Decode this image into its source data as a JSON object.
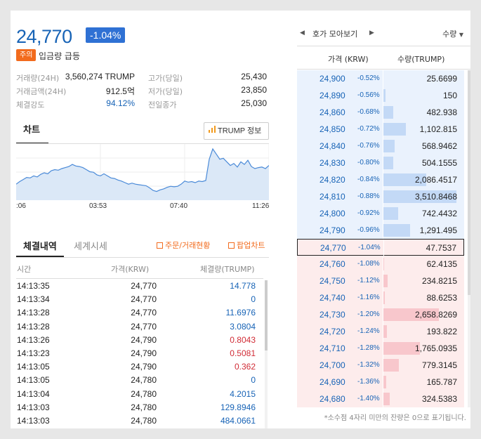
{
  "summary": {
    "price": "24,770",
    "change_rate": "-1.04%",
    "warning_badge": "주의",
    "warning_text": "입금량 급등"
  },
  "stats": {
    "volume_label": "거래량(24H)",
    "volume_value": "3,560,274 TRUMP",
    "amount_label": "거래금액(24H)",
    "amount_value": "912.5억",
    "strength_label": "체결강도",
    "strength_value": "94.12%",
    "high_label": "고가(당일)",
    "high_value": "25,430",
    "low_label": "저가(당일)",
    "low_value": "23,850",
    "prev_label": "전일종가",
    "prev_value": "25,030"
  },
  "chart": {
    "tab_label": "차트",
    "info_button": "TRUMP 정보",
    "x_ticks": [
      ":06",
      "03:53",
      "07:40",
      "11:26"
    ]
  },
  "chart_data": {
    "type": "area",
    "title": "",
    "xlabel": "",
    "ylabel": "",
    "x": [
      0,
      1,
      2,
      3,
      4,
      5,
      6,
      7,
      8,
      9,
      10,
      11,
      12,
      13,
      14,
      15,
      16,
      17,
      18,
      19,
      20,
      21,
      22,
      23,
      24,
      25,
      26,
      27,
      28,
      29,
      30,
      31,
      32,
      33,
      34,
      35,
      36,
      37,
      38,
      39,
      40,
      41,
      42,
      43,
      44,
      45,
      46,
      47,
      48,
      49,
      50,
      51,
      52,
      53,
      54,
      55,
      56,
      57,
      58,
      59,
      60,
      61,
      62,
      63,
      64,
      65,
      66,
      67,
      68,
      69,
      70,
      71,
      72
    ],
    "values": [
      24420,
      24470,
      24510,
      24550,
      24540,
      24580,
      24560,
      24610,
      24640,
      24620,
      24680,
      24700,
      24690,
      24720,
      24740,
      24760,
      24800,
      24770,
      24760,
      24740,
      24700,
      24660,
      24650,
      24600,
      24580,
      24620,
      24580,
      24540,
      24530,
      24500,
      24480,
      24450,
      24420,
      24440,
      24420,
      24410,
      24400,
      24390,
      24350,
      24300,
      24280,
      24310,
      24330,
      24360,
      24380,
      24370,
      24380,
      24420,
      24480,
      24460,
      24470,
      24450,
      24480,
      24470,
      24490,
      24900,
      25100,
      25000,
      24900,
      24920,
      24850,
      24780,
      24820,
      24750,
      24850,
      24800,
      24880,
      24760,
      24720,
      24740,
      24750,
      24720,
      24780
    ],
    "grid": true,
    "fill_color": "#dbe8f7",
    "line_color": "#4a8ad8"
  },
  "trades": {
    "tab_active": "체결내역",
    "tab_inactive": "세계시세",
    "link_order": "주문/거래현황",
    "link_popup": "팝업차트",
    "col_time": "시간",
    "col_price": "가격(KRW)",
    "col_volume": "체결량(TRUMP)",
    "rows": [
      {
        "time": "14:13:35",
        "price": "24,770",
        "volume": "14.778",
        "side": "up"
      },
      {
        "time": "14:13:34",
        "price": "24,770",
        "volume": "0",
        "side": "up"
      },
      {
        "time": "14:13:28",
        "price": "24,770",
        "volume": "11.6976",
        "side": "up"
      },
      {
        "time": "14:13:28",
        "price": "24,770",
        "volume": "3.0804",
        "side": "up"
      },
      {
        "time": "14:13:26",
        "price": "24,790",
        "volume": "0.8043",
        "side": "down"
      },
      {
        "time": "14:13:23",
        "price": "24,790",
        "volume": "0.5081",
        "side": "down"
      },
      {
        "time": "14:13:05",
        "price": "24,790",
        "volume": "0.362",
        "side": "down"
      },
      {
        "time": "14:13:05",
        "price": "24,780",
        "volume": "0",
        "side": "up"
      },
      {
        "time": "14:13:04",
        "price": "24,780",
        "volume": "4.2015",
        "side": "up"
      },
      {
        "time": "14:13:03",
        "price": "24,780",
        "volume": "129.8946",
        "side": "up"
      },
      {
        "time": "14:13:03",
        "price": "24,780",
        "volume": "484.0661",
        "side": "up"
      }
    ]
  },
  "orderbook": {
    "nav_label": "호가 모아보기",
    "qty_select": "수량",
    "col_price": "가격 (KRW)",
    "col_qty": "수량(TRUMP)",
    "footnote": "*소수점 4자리 미만의 잔량은 0으로 표기됩니다.",
    "current_price": "24,770",
    "asks": [
      {
        "price": "24,900",
        "pct": "-0.52%",
        "qty": "25.6699",
        "fill": 0.007
      },
      {
        "price": "24,890",
        "pct": "-0.56%",
        "qty": "150",
        "fill": 0.04
      },
      {
        "price": "24,860",
        "pct": "-0.68%",
        "qty": "482.938",
        "fill": 0.14
      },
      {
        "price": "24,850",
        "pct": "-0.72%",
        "qty": "1,102.815",
        "fill": 0.31
      },
      {
        "price": "24,840",
        "pct": "-0.76%",
        "qty": "568.9462",
        "fill": 0.16
      },
      {
        "price": "24,830",
        "pct": "-0.80%",
        "qty": "504.1555",
        "fill": 0.14
      },
      {
        "price": "24,820",
        "pct": "-0.84%",
        "qty": "2,086.4517",
        "fill": 0.59
      },
      {
        "price": "24,810",
        "pct": "-0.88%",
        "qty": "3,510.8468",
        "fill": 1.0
      },
      {
        "price": "24,800",
        "pct": "-0.92%",
        "qty": "742.4432",
        "fill": 0.21
      },
      {
        "price": "24,790",
        "pct": "-0.96%",
        "qty": "1,291.495",
        "fill": 0.37
      }
    ],
    "bids": [
      {
        "price": "24,770",
        "pct": "-1.04%",
        "qty": "47.7537",
        "fill": 0.014
      },
      {
        "price": "24,760",
        "pct": "-1.08%",
        "qty": "62.4135",
        "fill": 0.02
      },
      {
        "price": "24,750",
        "pct": "-1.12%",
        "qty": "234.8215",
        "fill": 0.07
      },
      {
        "price": "24,740",
        "pct": "-1.16%",
        "qty": "88.6253",
        "fill": 0.025
      },
      {
        "price": "24,730",
        "pct": "-1.20%",
        "qty": "2,658.8269",
        "fill": 0.76
      },
      {
        "price": "24,720",
        "pct": "-1.24%",
        "qty": "193.822",
        "fill": 0.055
      },
      {
        "price": "24,710",
        "pct": "-1.28%",
        "qty": "1,765.0935",
        "fill": 0.5
      },
      {
        "price": "24,700",
        "pct": "-1.32%",
        "qty": "779.3145",
        "fill": 0.22
      },
      {
        "price": "24,690",
        "pct": "-1.36%",
        "qty": "165.787",
        "fill": 0.047
      },
      {
        "price": "24,680",
        "pct": "-1.40%",
        "qty": "324.5383",
        "fill": 0.092
      }
    ]
  }
}
